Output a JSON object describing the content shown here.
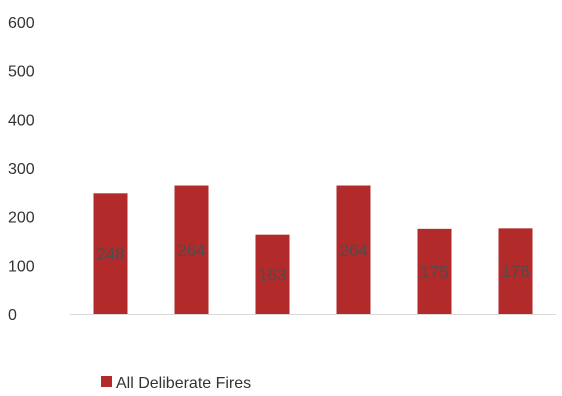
{
  "chart_data": {
    "type": "bar",
    "categories": [
      "",
      "",
      "",
      "",
      "",
      ""
    ],
    "series": [
      {
        "name": "All Deliberate Fires",
        "values": [
          248,
          264,
          163,
          264,
          175,
          176
        ],
        "color": "#b22a2a"
      }
    ],
    "ylim": [
      0,
      600
    ],
    "yticks": [
      0,
      100,
      200,
      300,
      400,
      500,
      600
    ],
    "ytick_labels": [
      "0",
      "100",
      "200",
      "300",
      "400",
      "500",
      "600"
    ],
    "data_labels": [
      "248",
      "264",
      "163",
      "264",
      "175",
      "176"
    ],
    "title": "",
    "xlabel": "",
    "ylabel": "",
    "grid": false,
    "legend_position": "bottom-left"
  }
}
